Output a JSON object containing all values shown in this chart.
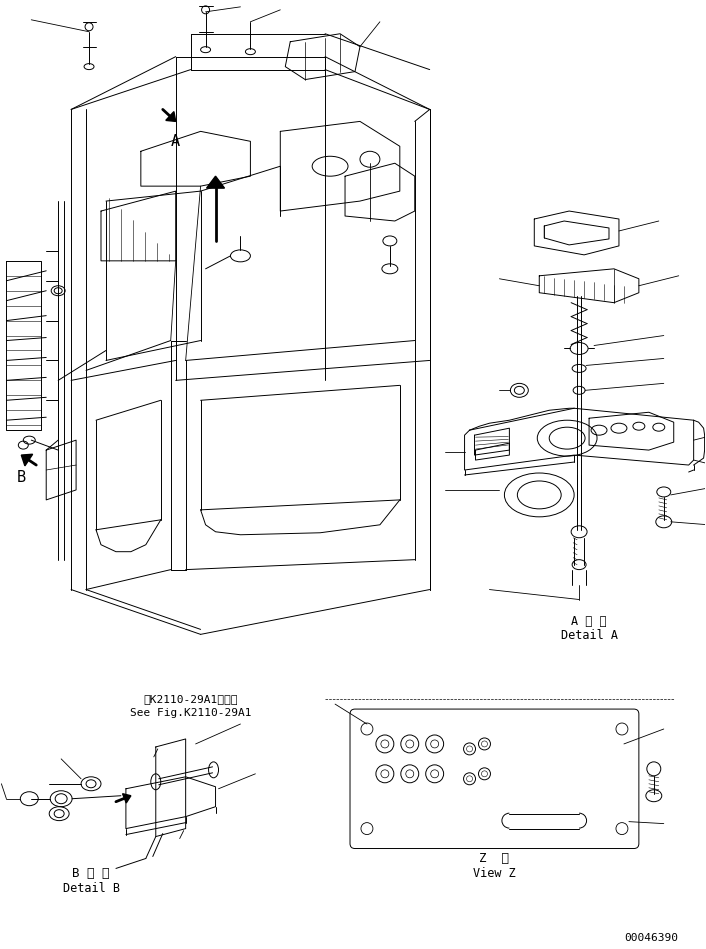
{
  "bg_color": "#ffffff",
  "line_color": "#000000",
  "figsize": [
    7.06,
    9.49
  ],
  "dpi": 100,
  "label_A": "A",
  "label_B": "B",
  "detail_A_ja": "A 詳 細",
  "detail_A_en": "Detail A",
  "detail_B_ja": "第K2110-29A1図参照",
  "detail_B_ref": "See Fig.K2110-29A1",
  "detail_B_label_ja": "B 詳 細",
  "detail_B_label_en": "Detail B",
  "view_Z_ja": "Z  視",
  "view_Z_en": "View Z",
  "part_number": "00046390",
  "font_size_label": 11,
  "font_size_small": 8,
  "font_size_partno": 8
}
